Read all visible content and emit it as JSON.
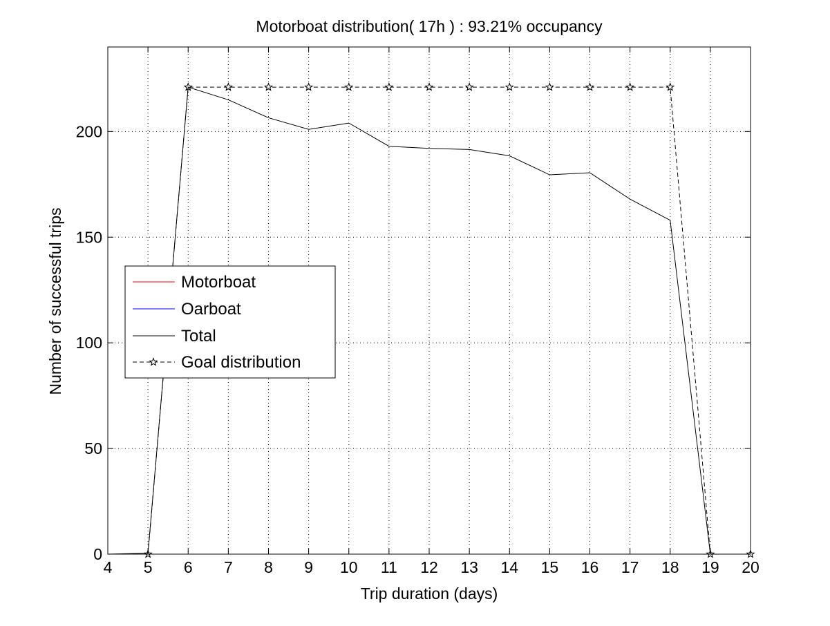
{
  "chart_data": {
    "type": "line",
    "title": "Motorboat distribution( 17h ) : 93.21% occupancy",
    "xlabel": "Trip duration (days)",
    "ylabel": "Number of successful trips",
    "xlim": [
      4,
      20
    ],
    "ylim": [
      0,
      240
    ],
    "xticks": [
      4,
      5,
      6,
      7,
      8,
      9,
      10,
      11,
      12,
      13,
      14,
      15,
      16,
      17,
      18,
      19,
      20
    ],
    "yticks": [
      0,
      50,
      100,
      150,
      200
    ],
    "grid": true,
    "legend_position": "middle-left",
    "legend": [
      "Motorboat",
      "Oarboat",
      "Total",
      "Goal distribution"
    ],
    "x": [
      4,
      5,
      6,
      7,
      8,
      9,
      10,
      11,
      12,
      13,
      14,
      15,
      16,
      17,
      18,
      19,
      20
    ],
    "series": [
      {
        "name": "Motorboat",
        "color": "#ff0000",
        "style": "solid",
        "values": [
          0,
          0,
          0,
          0,
          0,
          0,
          0,
          0,
          0,
          0,
          0,
          0,
          0,
          0,
          0,
          0,
          0
        ]
      },
      {
        "name": "Oarboat",
        "color": "#0000ff",
        "style": "solid",
        "values": [
          0,
          0,
          0,
          0,
          0,
          0,
          0,
          0,
          0,
          0,
          0,
          0,
          0,
          0,
          0,
          0,
          0
        ]
      },
      {
        "name": "Total",
        "color": "#000000",
        "style": "solid",
        "values": [
          0,
          0.5,
          221,
          215,
          206.5,
          201,
          204,
          193,
          192,
          191.5,
          188.5,
          179.5,
          180.5,
          168,
          158,
          0,
          0
        ]
      },
      {
        "name": "Goal distribution",
        "color": "#000000",
        "style": "dashed",
        "marker": "star",
        "x": [
          5,
          6,
          7,
          8,
          9,
          10,
          11,
          12,
          13,
          14,
          15,
          16,
          17,
          18,
          19,
          20
        ],
        "values": [
          0,
          221,
          221,
          221,
          221,
          221,
          221,
          221,
          221,
          221,
          221,
          221,
          221,
          221,
          0,
          0
        ]
      }
    ]
  }
}
